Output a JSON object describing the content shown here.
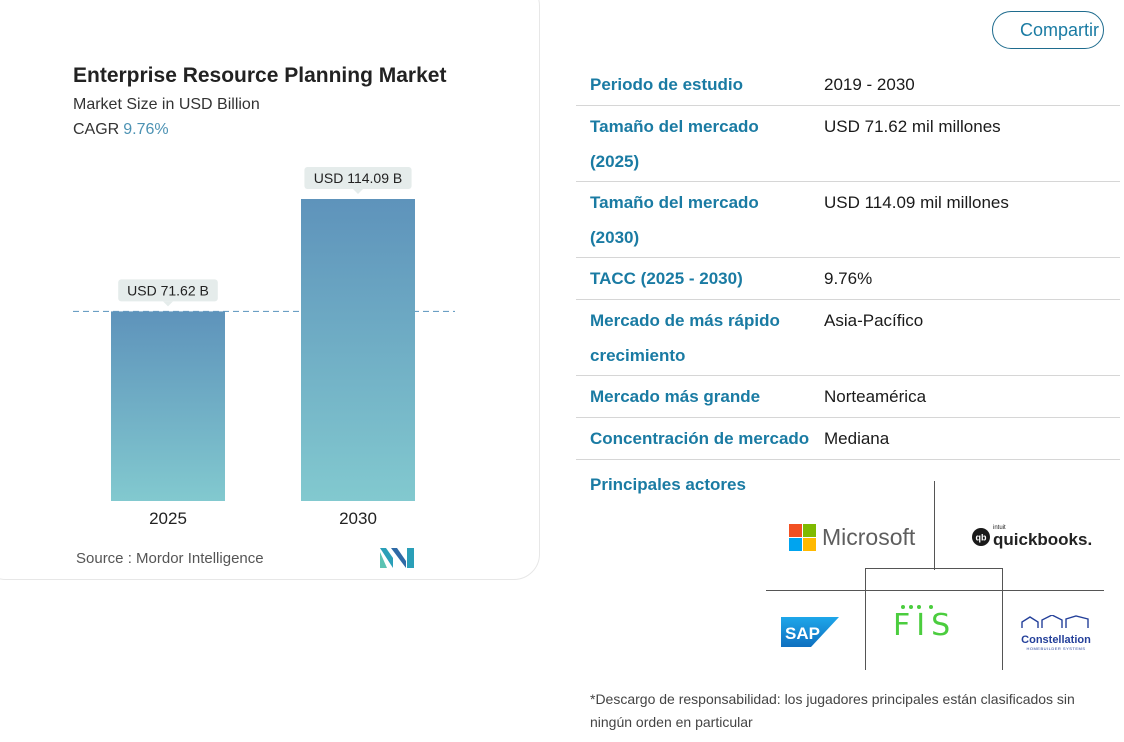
{
  "share_label": "Compartir",
  "chart_data": {
    "type": "bar",
    "title": "Enterprise Resource Planning Market",
    "subtitle": "Market Size in USD Billion",
    "cagr_label": "CAGR",
    "cagr_value": "9.76%",
    "categories": [
      "2025",
      "2030"
    ],
    "values": [
      71.62,
      114.09
    ],
    "data_labels": [
      "USD 71.62 B",
      "USD 114.09 B"
    ],
    "ylim": [
      0,
      114.09
    ],
    "reference_line": 71.62,
    "colors": {
      "bar_top": "#5e93bb",
      "bar_bottom": "#82c9cf",
      "dashed_line": "#6b9fc4",
      "label_bg": "#e5eceb"
    },
    "source": "Source :  Mordor Intelligence"
  },
  "table": {
    "rows": [
      {
        "key": [
          "Periodo de estudio"
        ],
        "value": "2019 - 2030"
      },
      {
        "key": [
          "Tamaño del mercado",
          "(2025)"
        ],
        "value": "USD 71.62 mil millones"
      },
      {
        "key": [
          "Tamaño del mercado",
          "(2030)"
        ],
        "value": "USD 114.09 mil millones"
      },
      {
        "key": [
          "TACC (2025 - 2030)"
        ],
        "value": "9.76%"
      },
      {
        "key": [
          "Mercado de más rápido",
          "crecimiento"
        ],
        "value": "Asia-Pacífico"
      },
      {
        "key": [
          "Mercado más grande"
        ],
        "value": "Norteamérica"
      },
      {
        "key": [
          "Concentración de mercado"
        ],
        "value": "Mediana"
      }
    ],
    "actors_label": "Principales actores"
  },
  "logos": {
    "microsoft": "Microsoft",
    "quickbooks_small": "intuit",
    "quickbooks": "quickbooks.",
    "sap": "SAP",
    "fis": "FIS",
    "constellation": "Constellation",
    "constellation_sub": "HOMEBUILDER SYSTEMS"
  },
  "disclaimer": "*Descargo de responsabilidad: los jugadores principales están clasificados sin ningún orden en particular"
}
